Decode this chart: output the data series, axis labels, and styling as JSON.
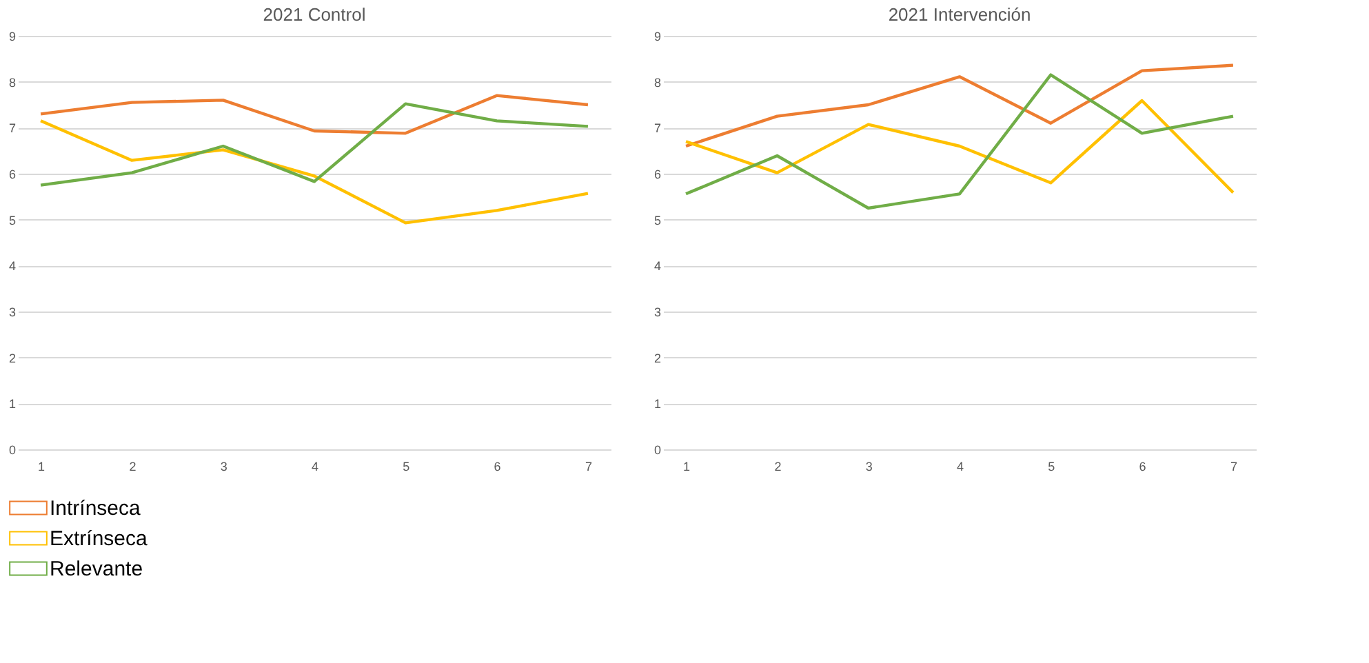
{
  "chart_data": [
    {
      "type": "line",
      "title": "2021 Control",
      "categories": [
        "1",
        "2",
        "3",
        "4",
        "5",
        "6",
        "7"
      ],
      "ylim": [
        0,
        9
      ],
      "yticks": [
        0,
        1,
        2,
        3,
        4,
        5,
        6,
        7,
        8,
        9
      ],
      "grid": "y",
      "legend": "bottom",
      "marker": "none",
      "line_style": "solid",
      "series": [
        {
          "name": "Intrínseca",
          "color": "#ed7d31",
          "values": [
            7.3,
            7.55,
            7.6,
            6.93,
            6.88,
            7.7,
            7.5
          ]
        },
        {
          "name": "Extrínseca",
          "color": "#ffc000",
          "values": [
            7.15,
            6.29,
            6.52,
            5.95,
            4.93,
            5.2,
            5.57
          ]
        },
        {
          "name": "Relevante",
          "color": "#70ad47",
          "values": [
            5.75,
            6.02,
            6.6,
            5.83,
            7.52,
            7.15,
            7.03
          ]
        }
      ]
    },
    {
      "type": "line",
      "title": "2021 Intervención",
      "categories": [
        "1",
        "2",
        "3",
        "4",
        "5",
        "6",
        "7"
      ],
      "ylim": [
        0,
        9
      ],
      "yticks": [
        0,
        1,
        2,
        3,
        4,
        5,
        6,
        7,
        8,
        9
      ],
      "grid": "y",
      "legend": "bottom",
      "marker": "none",
      "line_style": "solid",
      "series": [
        {
          "name": "Intrínseca",
          "color": "#ed7d31",
          "values": [
            6.6,
            7.25,
            7.5,
            8.11,
            7.1,
            8.24,
            8.36
          ]
        },
        {
          "name": "Extrínseca",
          "color": "#ffc000",
          "values": [
            6.7,
            6.02,
            7.07,
            6.6,
            5.8,
            7.59,
            5.59
          ]
        },
        {
          "name": "Relevante",
          "color": "#70ad47",
          "values": [
            5.56,
            6.39,
            5.25,
            5.56,
            8.15,
            6.88,
            7.25
          ]
        }
      ]
    }
  ]
}
